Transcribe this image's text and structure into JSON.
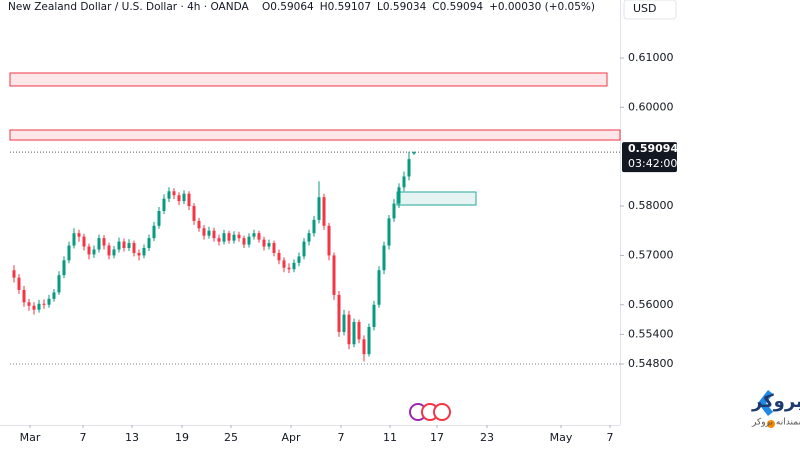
{
  "chart_data": {
    "type": "candlestick",
    "title": "New Zealand Dollar / U.S. Dollar · 4h · OANDA",
    "ohlc_legend": [
      "O0.59064",
      "H0.59107",
      "L0.59034",
      "C0.59094",
      "+0.00030 (+0.05%)"
    ],
    "currency": "USD",
    "last_price_label": "0.59094",
    "countdown": "03:42:00",
    "last_price": 0.59094,
    "open": [
      0.567,
      0.5655,
      0.563,
      0.5605,
      0.5598,
      0.559,
      0.5602,
      0.56,
      0.5612,
      0.5625,
      0.566,
      0.569,
      0.572,
      0.5745,
      0.5738,
      0.5718,
      0.5702,
      0.5712,
      0.5735,
      0.572,
      0.57,
      0.5712,
      0.5728,
      0.5715,
      0.5725,
      0.5705,
      0.57,
      0.5715,
      0.5735,
      0.576,
      0.579,
      0.5815,
      0.583,
      0.5822,
      0.581,
      0.5825,
      0.58,
      0.577,
      0.5755,
      0.574,
      0.575,
      0.5735,
      0.5728,
      0.5745,
      0.573,
      0.5742,
      0.5735,
      0.5722,
      0.5738,
      0.5745,
      0.5732,
      0.5718,
      0.5725,
      0.5705,
      0.569,
      0.5675,
      0.5672,
      0.5685,
      0.5698,
      0.5728,
      0.5745,
      0.5772,
      0.5818,
      0.576,
      0.57,
      0.562,
      0.5545,
      0.558,
      0.552,
      0.5565,
      0.553,
      0.55,
      0.5555,
      0.56,
      0.567,
      0.572,
      0.5775,
      0.5805,
      0.5838,
      0.586,
      0.59064
    ],
    "high": [
      0.568,
      0.5662,
      0.5638,
      0.5612,
      0.5605,
      0.561,
      0.5611,
      0.562,
      0.5632,
      0.5668,
      0.5698,
      0.5728,
      0.5755,
      0.5752,
      0.5744,
      0.5724,
      0.572,
      0.5742,
      0.5741,
      0.5726,
      0.5719,
      0.5736,
      0.5734,
      0.5733,
      0.573,
      0.5712,
      0.5722,
      0.5742,
      0.5768,
      0.5798,
      0.5824,
      0.5838,
      0.5836,
      0.5828,
      0.5832,
      0.583,
      0.5806,
      0.5776,
      0.5762,
      0.5758,
      0.5756,
      0.5742,
      0.5752,
      0.575,
      0.5749,
      0.5748,
      0.574,
      0.5745,
      0.5752,
      0.575,
      0.5738,
      0.5732,
      0.573,
      0.5712,
      0.5696,
      0.5684,
      0.5692,
      0.5706,
      0.5735,
      0.5752,
      0.578,
      0.585,
      0.5825,
      0.5766,
      0.5706,
      0.5628,
      0.559,
      0.5588,
      0.5572,
      0.557,
      0.5538,
      0.5562,
      0.5608,
      0.5678,
      0.5728,
      0.5782,
      0.5814,
      0.5846,
      0.587,
      0.591,
      0.59107
    ],
    "low": [
      0.5645,
      0.5622,
      0.5596,
      0.5588,
      0.558,
      0.5584,
      0.5592,
      0.5594,
      0.5606,
      0.562,
      0.5654,
      0.5684,
      0.5714,
      0.5728,
      0.571,
      0.5692,
      0.5695,
      0.5706,
      0.5712,
      0.5692,
      0.5694,
      0.5706,
      0.5708,
      0.5709,
      0.5698,
      0.569,
      0.5694,
      0.5709,
      0.5729,
      0.5754,
      0.5784,
      0.5808,
      0.5814,
      0.5802,
      0.5804,
      0.5792,
      0.5762,
      0.5748,
      0.5732,
      0.5734,
      0.5728,
      0.572,
      0.5722,
      0.5724,
      0.5724,
      0.5728,
      0.5715,
      0.5716,
      0.5732,
      0.5726,
      0.571,
      0.5712,
      0.5698,
      0.5682,
      0.5666,
      0.5664,
      0.5666,
      0.5678,
      0.5692,
      0.572,
      0.5738,
      0.5765,
      0.5752,
      0.569,
      0.561,
      0.5535,
      0.5538,
      0.551,
      0.5514,
      0.5522,
      0.5485,
      0.5495,
      0.5548,
      0.5594,
      0.5662,
      0.5712,
      0.5768,
      0.5796,
      0.583,
      0.5852,
      0.59034
    ],
    "close": [
      0.5655,
      0.563,
      0.5605,
      0.5598,
      0.559,
      0.5602,
      0.56,
      0.5612,
      0.5625,
      0.566,
      0.569,
      0.572,
      0.5745,
      0.5738,
      0.5718,
      0.5702,
      0.5712,
      0.5735,
      0.572,
      0.57,
      0.5712,
      0.5728,
      0.5715,
      0.5725,
      0.5705,
      0.57,
      0.5715,
      0.5735,
      0.576,
      0.579,
      0.5815,
      0.583,
      0.5822,
      0.581,
      0.5825,
      0.58,
      0.577,
      0.5755,
      0.574,
      0.575,
      0.5735,
      0.5728,
      0.5745,
      0.573,
      0.5742,
      0.5735,
      0.5722,
      0.5738,
      0.5745,
      0.5732,
      0.5718,
      0.5725,
      0.5705,
      0.569,
      0.5675,
      0.5672,
      0.5685,
      0.5698,
      0.5728,
      0.5745,
      0.5772,
      0.5818,
      0.576,
      0.57,
      0.562,
      0.5545,
      0.558,
      0.552,
      0.5565,
      0.553,
      0.55,
      0.5555,
      0.56,
      0.567,
      0.572,
      0.5775,
      0.5805,
      0.5838,
      0.586,
      0.5895,
      0.59094
    ],
    "up_color": "#089981",
    "down_color": "#f23645",
    "zones": [
      {
        "from": 0.60433,
        "to": 0.60696,
        "x": [
          -0.4,
          119
        ],
        "color": "#f23645"
      },
      {
        "from": 0.59338,
        "to": 0.59541,
        "x": [
          -0.4,
          121.6
        ],
        "color": "#f23645"
      },
      {
        "from": 0.58021,
        "to": 0.58285,
        "x": [
          77,
          92.8
        ],
        "color": "#26a69a"
      }
    ],
    "hlines": [
      0.548
    ],
    "xlim": [
      -0.4,
      121.6
    ],
    "ylim": [
      0.53564,
      0.62175
    ],
    "xticks": [
      {
        "value": 3.6,
        "label": "Mar"
      },
      {
        "value": 14.2,
        "label": "7"
      },
      {
        "value": 24,
        "label": "13"
      },
      {
        "value": 34,
        "label": "19"
      },
      {
        "value": 43.8,
        "label": "25"
      },
      {
        "value": 55.8,
        "label": "Apr"
      },
      {
        "value": 65.8,
        "label": "7"
      },
      {
        "value": 75.6,
        "label": "11"
      },
      {
        "value": 85,
        "label": "17"
      },
      {
        "value": 95,
        "label": "23"
      },
      {
        "value": 109.8,
        "label": "May"
      },
      {
        "value": 119.6,
        "label": "7"
      }
    ],
    "yticks": [
      {
        "value": 0.61,
        "label": "0.61000"
      },
      {
        "value": 0.6,
        "label": "0.60000"
      },
      {
        "value": 0.58,
        "label": "0.58000"
      },
      {
        "value": 0.57,
        "label": "0.57000"
      },
      {
        "value": 0.56,
        "label": "0.56000"
      },
      {
        "value": 0.554,
        "label": "0.55400"
      },
      {
        "value": 0.548,
        "label": "0.54800"
      }
    ]
  },
  "watermark": {
    "brand": "کدام بروکر",
    "tagline": "انتخاب هوشمندانه بروکر"
  }
}
